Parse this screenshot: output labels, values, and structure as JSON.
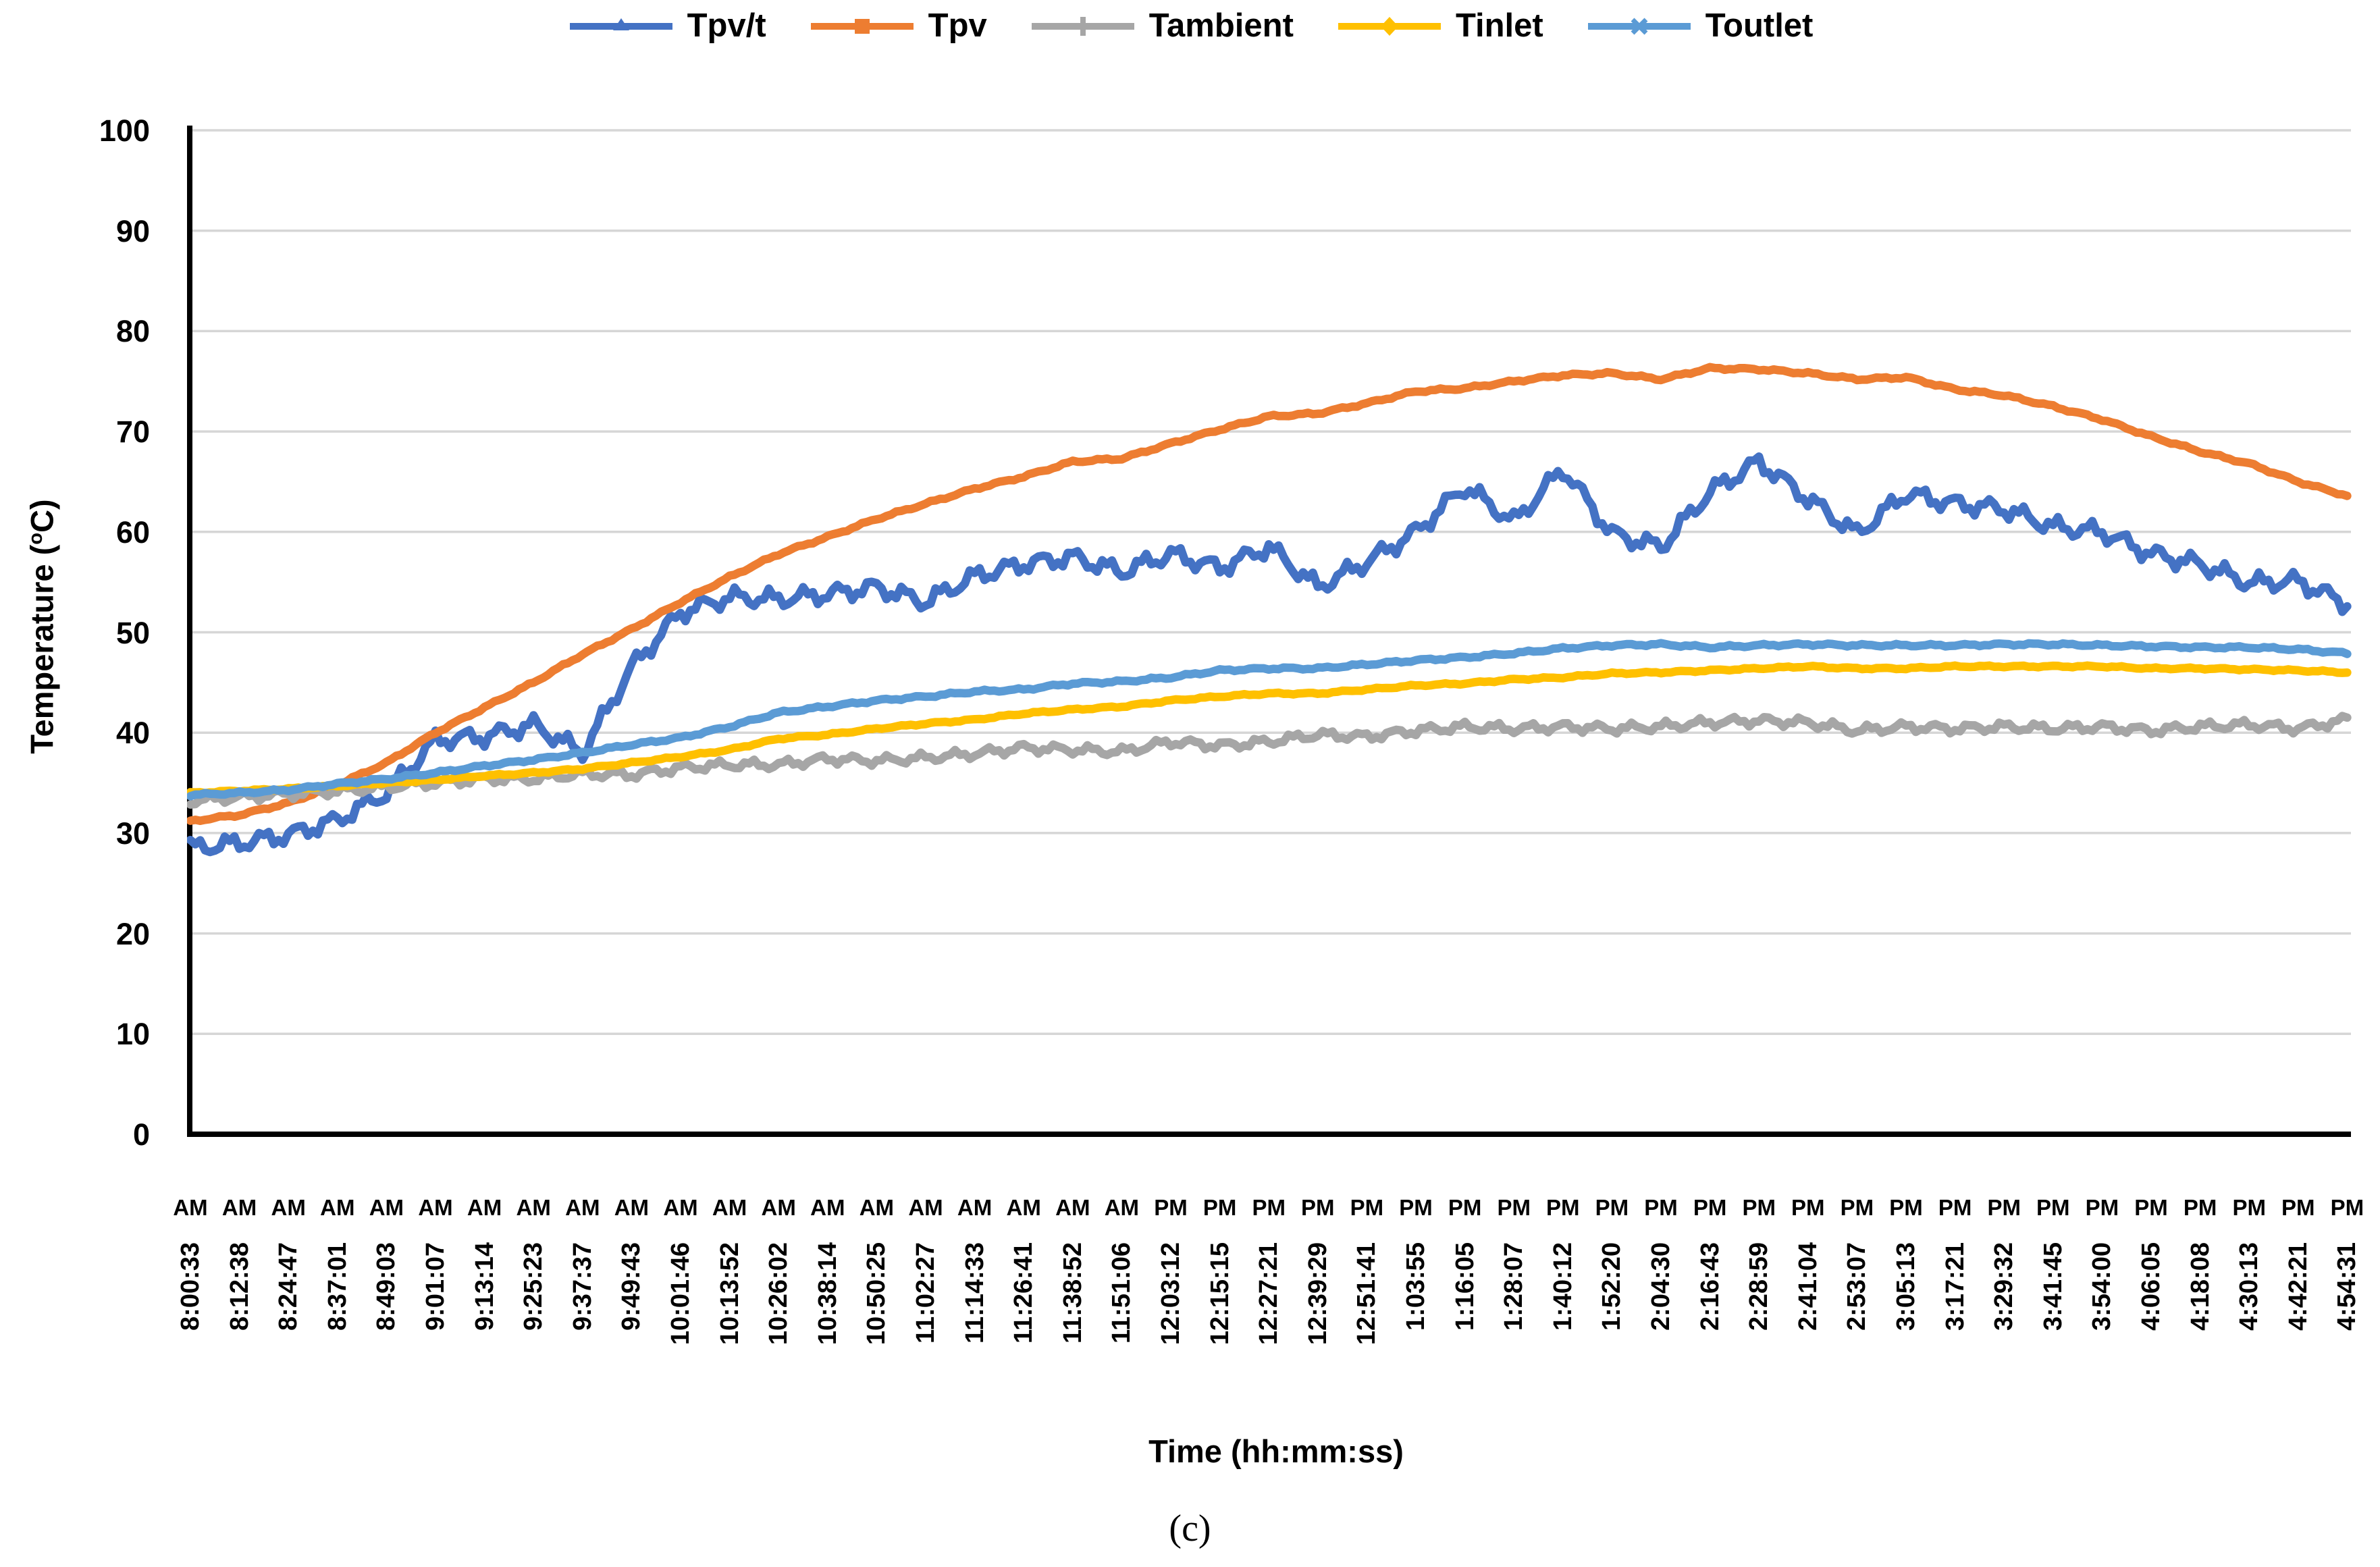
{
  "figure": {
    "caption": "(c)"
  },
  "chart_data": {
    "type": "line",
    "title": "",
    "xlabel": "Time (hh:mm:ss)",
    "ylabel_parts": {
      "prefix": "Temperature (",
      "sup": "o",
      "suffix": "C)"
    },
    "ylim": [
      0,
      100
    ],
    "ytick_step": 10,
    "yticks": [
      0,
      10,
      20,
      30,
      40,
      50,
      60,
      70,
      80,
      90,
      100
    ],
    "grid": "horizontal",
    "legend_position": "top",
    "categories": [
      "8:00:33",
      "8:12:38",
      "8:24:47",
      "8:37:01",
      "8:49:03",
      "9:01:07",
      "9:13:14",
      "9:25:23",
      "9:37:37",
      "9:49:43",
      "10:01:46",
      "10:13:52",
      "10:26:02",
      "10:38:14",
      "10:50:25",
      "11:02:27",
      "11:14:33",
      "11:26:41",
      "11:38:52",
      "11:51:06",
      "12:03:12",
      "12:15:15",
      "12:27:21",
      "12:39:29",
      "12:51:41",
      "1:03:55",
      "1:16:05",
      "1:28:07",
      "1:40:12",
      "1:52:20",
      "2:04:30",
      "2:16:43",
      "2:28:59",
      "2:41:04",
      "2:53:07",
      "3:05:13",
      "3:17:21",
      "3:29:32",
      "3:41:45",
      "3:54:00",
      "4:06:05",
      "4:18:08",
      "4:30:13",
      "4:42:21",
      "4:54:31"
    ],
    "meridiem": [
      "AM",
      "AM",
      "AM",
      "AM",
      "AM",
      "AM",
      "AM",
      "AM",
      "AM",
      "AM",
      "AM",
      "AM",
      "AM",
      "AM",
      "AM",
      "AM",
      "AM",
      "AM",
      "AM",
      "AM",
      "PM",
      "PM",
      "PM",
      "PM",
      "PM",
      "PM",
      "PM",
      "PM",
      "PM",
      "PM",
      "PM",
      "PM",
      "PM",
      "PM",
      "PM",
      "PM",
      "PM",
      "PM",
      "PM",
      "PM",
      "PM",
      "PM",
      "PM",
      "PM",
      "PM"
    ],
    "series": [
      {
        "name": "Tpv/t",
        "color": "#4472C4",
        "marker": "triangle",
        "values": [
          28.5,
          29.0,
          29.8,
          31.3,
          34.0,
          39.3,
          39.6,
          40.8,
          38.0,
          46.5,
          52.0,
          53.5,
          53.3,
          53.8,
          54.5,
          53.0,
          55.6,
          56.8,
          57.5,
          56.0,
          57.8,
          56.4,
          58.5,
          54.5,
          57.0,
          60.0,
          64.5,
          61.0,
          66.3,
          59.8,
          58.5,
          64.0,
          67.0,
          63.3,
          59.8,
          63.8,
          62.8,
          62.3,
          60.5,
          60.0,
          57.8,
          56.8,
          54.9,
          55.1,
          52.8
        ]
      },
      {
        "name": "Tpv",
        "color": "#ED7D31",
        "marker": "square",
        "values": [
          31.2,
          31.8,
          33.0,
          34.8,
          37.0,
          40.0,
          42.5,
          45.0,
          47.8,
          50.3,
          53.0,
          55.5,
          57.8,
          59.5,
          61.3,
          62.8,
          64.3,
          65.5,
          67.0,
          67.3,
          68.8,
          70.2,
          71.5,
          71.8,
          72.8,
          74.0,
          74.3,
          75.0,
          75.6,
          75.8,
          75.2,
          76.3,
          76.2,
          75.8,
          75.2,
          75.4,
          74.2,
          73.6,
          72.5,
          71.2,
          69.5,
          68.0,
          66.8,
          65.0,
          63.6
        ]
      },
      {
        "name": "Tambient",
        "color": "#A6A6A6",
        "marker": "plus",
        "values": [
          33.2,
          33.6,
          33.9,
          34.2,
          34.6,
          35.0,
          35.4,
          35.4,
          35.9,
          35.8,
          36.5,
          36.8,
          36.8,
          37.4,
          37.2,
          37.5,
          37.9,
          38.5,
          38.3,
          38.1,
          39.1,
          38.7,
          39.1,
          39.8,
          39.6,
          40.2,
          40.6,
          40.4,
          40.6,
          40.4,
          40.6,
          41.0,
          41.2,
          41.0,
          40.2,
          40.6,
          40.4,
          40.6,
          40.4,
          40.6,
          40.2,
          40.6,
          40.8,
          40.4,
          41.3
        ]
      },
      {
        "name": "Tinlet",
        "color": "#FFC000",
        "marker": "diamond",
        "values": [
          34.0,
          34.2,
          34.4,
          34.7,
          35.0,
          35.3,
          35.7,
          36.0,
          36.4,
          37.0,
          37.6,
          38.3,
          39.4,
          39.8,
          40.4,
          40.9,
          41.3,
          41.9,
          42.3,
          42.6,
          43.2,
          43.6,
          43.9,
          43.9,
          44.3,
          44.7,
          44.9,
          45.3,
          45.5,
          45.9,
          46.0,
          46.2,
          46.4,
          46.6,
          46.4,
          46.4,
          46.6,
          46.6,
          46.6,
          46.6,
          46.4,
          46.4,
          46.3,
          46.2,
          46.0
        ]
      },
      {
        "name": "Toutlet",
        "color": "#5B9BD5",
        "marker": "x",
        "values": [
          33.8,
          34.0,
          34.3,
          34.9,
          35.4,
          36.0,
          36.7,
          37.3,
          38.0,
          38.8,
          39.5,
          40.6,
          42.0,
          42.6,
          43.2,
          43.6,
          44.1,
          44.3,
          44.9,
          45.1,
          45.5,
          46.2,
          46.4,
          46.4,
          46.8,
          47.2,
          47.5,
          47.9,
          48.4,
          48.7,
          48.8,
          48.5,
          48.7,
          48.8,
          48.7,
          48.7,
          48.7,
          48.8,
          48.8,
          48.7,
          48.6,
          48.5,
          48.5,
          48.3,
          47.9
        ]
      }
    ]
  }
}
